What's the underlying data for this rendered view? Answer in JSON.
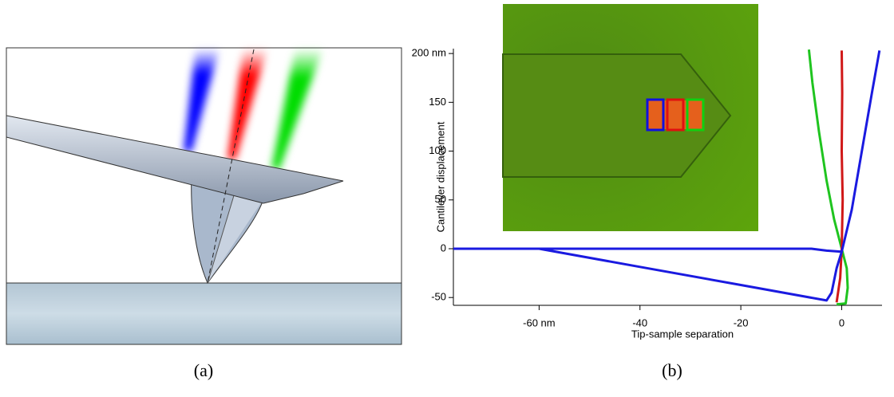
{
  "figure_a": {
    "caption": "(a)"
  },
  "chart_data": {
    "type": "line",
    "caption": "(b)",
    "xlabel": "Tip-sample separation",
    "ylabel": "Cantilever displacement",
    "xlim": [
      -77,
      8
    ],
    "ylim": [
      -58,
      205
    ],
    "xticks": [
      {
        "value": -60,
        "label": "-60 nm"
      },
      -40,
      -20,
      0
    ],
    "yticks": [
      {
        "value": 200,
        "label": "200 nm"
      },
      150,
      100,
      50,
      0,
      -50
    ],
    "series": [
      {
        "color": "#1fc41f",
        "x": [
          -6.5,
          -5.8,
          -4.5,
          -3,
          -1.5,
          0,
          1,
          1.2,
          0.8,
          -1
        ],
        "values": [
          204,
          170,
          120,
          70,
          30,
          0,
          -20,
          -40,
          -56,
          -57
        ]
      },
      {
        "color": "#d01818",
        "x": [
          -1,
          -0.3,
          0,
          0.2,
          0,
          0.1,
          0
        ],
        "values": [
          -55,
          -30,
          0,
          50,
          100,
          160,
          203
        ]
      },
      {
        "color": "#1a1ae0",
        "x": [
          -77,
          -60,
          -6,
          -3,
          0,
          2,
          4,
          6,
          7.5
        ],
        "values": [
          0,
          0,
          0,
          -2,
          -3,
          40,
          100,
          160,
          203
        ]
      },
      {
        "color": "#1a1ae0",
        "x": [
          0,
          -1,
          -2,
          -3,
          -20,
          -40,
          -60,
          -77
        ],
        "values": [
          -3,
          -20,
          -45,
          -53,
          -37.2,
          -18.6,
          0,
          0
        ]
      }
    ]
  }
}
